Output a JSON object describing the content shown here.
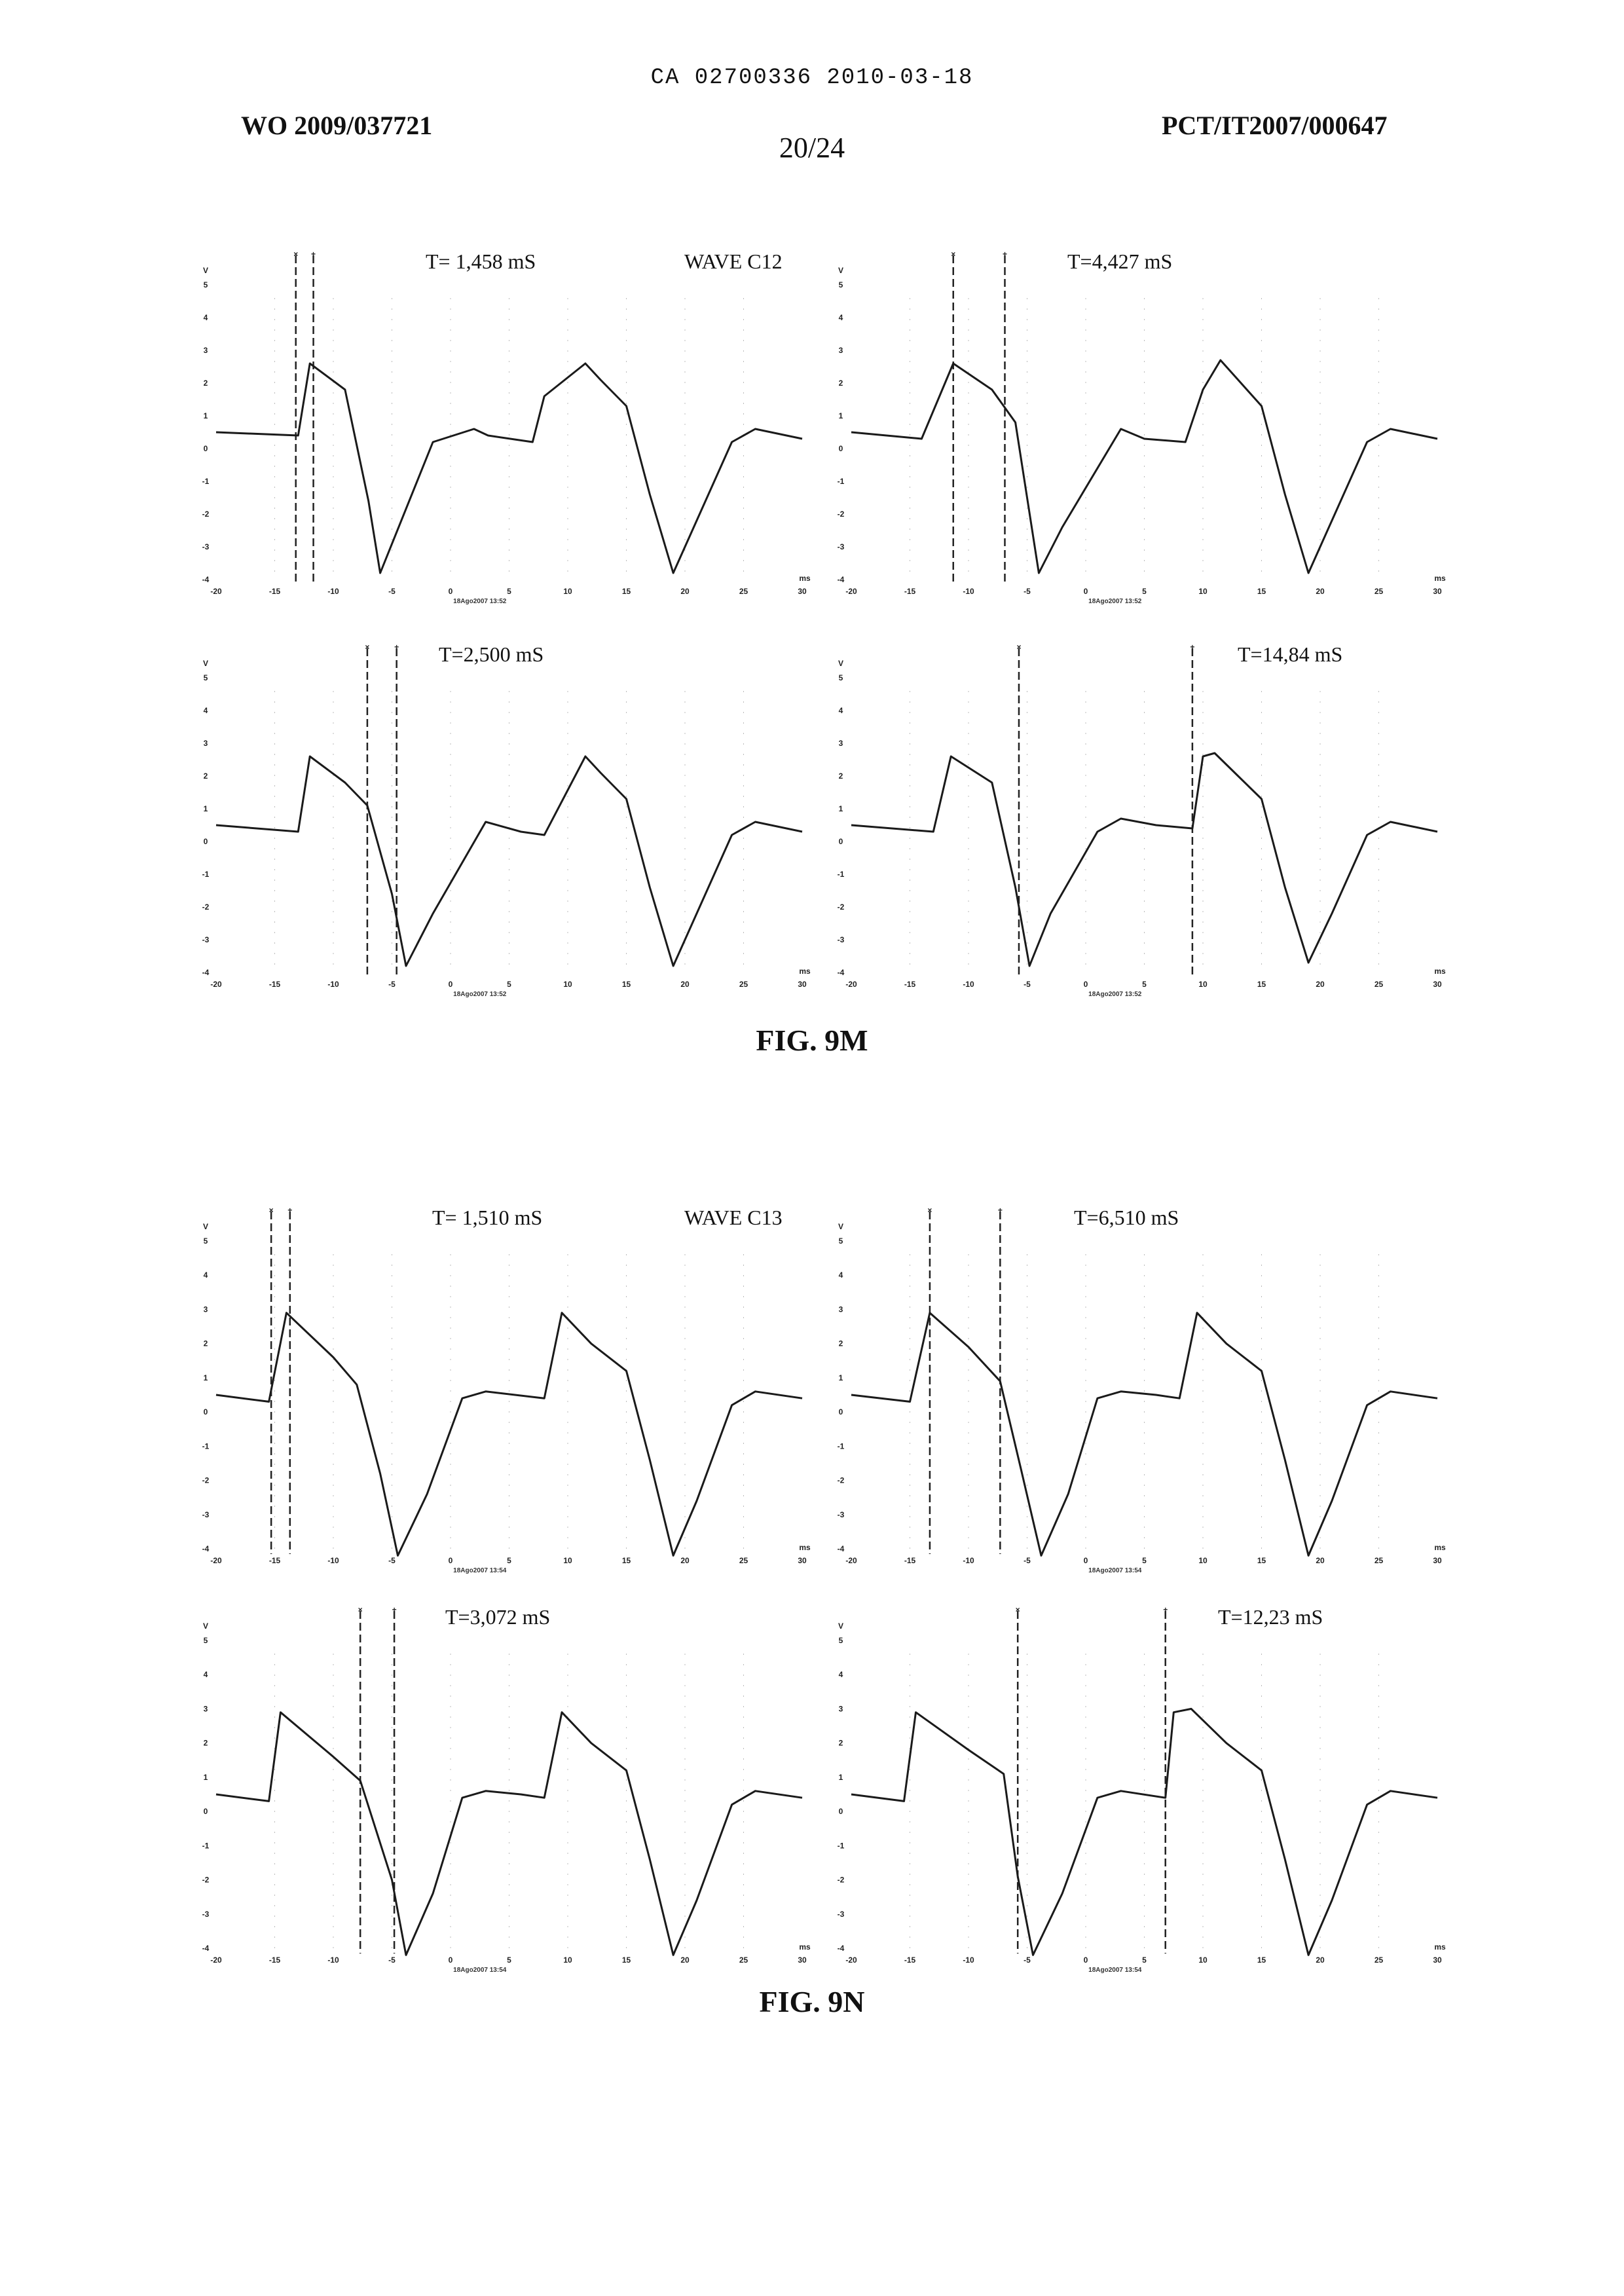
{
  "header": {
    "ca_line": "CA 02700336 2010-03-18",
    "wo_number": "WO 2009/037721",
    "pct_number": "PCT/IT2007/000647",
    "page_number": "20/24"
  },
  "figures": [
    {
      "label": "FIG. 9M",
      "wave_label": "WAVE C12",
      "stamp": "18Ago2007 13:52"
    },
    {
      "label": "FIG. 9N",
      "wave_label": "WAVE C13",
      "stamp": "18Ago2007 13:54"
    }
  ],
  "chart_data": [
    {
      "type": "line",
      "figure": "FIG. 9M",
      "title": "T= 1,458 mS",
      "xunit": "ms",
      "yunit": "V",
      "xlim": [
        -20,
        30
      ],
      "ylim": [
        -4,
        5
      ],
      "xticks": [
        -20,
        -15,
        -10,
        -5,
        0,
        5,
        10,
        15,
        20,
        25,
        30
      ],
      "yticks": [
        5,
        4,
        3,
        2,
        1,
        0,
        -1,
        -2,
        -3,
        -4
      ],
      "cursors": [
        -13.2,
        -11.7
      ],
      "series": [
        {
          "x": [
            -20,
            -13,
            -12,
            -9,
            -7,
            -6,
            -1.5,
            2,
            3.2,
            7,
            8,
            11.5,
            12.8,
            15,
            17,
            19,
            21,
            24,
            26,
            30
          ],
          "y": [
            0.5,
            0.4,
            2.6,
            1.8,
            -1.6,
            -3.8,
            0.2,
            0.6,
            0.4,
            0.2,
            1.6,
            2.6,
            2.1,
            1.3,
            -1.4,
            -3.8,
            -2.2,
            0.2,
            0.6,
            0.3
          ]
        }
      ]
    },
    {
      "type": "line",
      "figure": "FIG. 9M",
      "title": "T=4,427 mS",
      "xunit": "ms",
      "yunit": "V",
      "xlim": [
        -20,
        30
      ],
      "ylim": [
        -4,
        5
      ],
      "xticks": [
        -20,
        -15,
        -10,
        -5,
        0,
        5,
        10,
        15,
        20,
        25,
        30
      ],
      "yticks": [
        5,
        4,
        3,
        2,
        1,
        0,
        -1,
        -2,
        -3,
        -4
      ],
      "cursors": [
        -11.3,
        -6.9
      ],
      "series": [
        {
          "x": [
            -20,
            -14,
            -11.3,
            -8,
            -6,
            -4,
            -2,
            3,
            5,
            8.5,
            10,
            11.5,
            13,
            15,
            17,
            19,
            21,
            24,
            26,
            30
          ],
          "y": [
            0.5,
            0.3,
            2.6,
            1.8,
            0.8,
            -3.8,
            -2.4,
            0.6,
            0.3,
            0.2,
            1.8,
            2.7,
            2.1,
            1.3,
            -1.4,
            -3.8,
            -2.2,
            0.2,
            0.6,
            0.3
          ]
        }
      ]
    },
    {
      "type": "line",
      "figure": "FIG. 9M",
      "title": "T=2,500 mS",
      "xunit": "ms",
      "yunit": "V",
      "xlim": [
        -20,
        30
      ],
      "ylim": [
        -4,
        5
      ],
      "xticks": [
        -20,
        -15,
        -10,
        -5,
        0,
        5,
        10,
        15,
        20,
        25,
        30
      ],
      "yticks": [
        5,
        4,
        3,
        2,
        1,
        0,
        -1,
        -2,
        -3,
        -4
      ],
      "cursors": [
        -7.1,
        -4.6
      ],
      "series": [
        {
          "x": [
            -20,
            -13,
            -12,
            -9,
            -7.1,
            -5,
            -3.8,
            -1.5,
            3,
            6,
            8,
            11.5,
            12.8,
            15,
            17,
            19,
            21,
            24,
            26,
            30
          ],
          "y": [
            0.5,
            0.3,
            2.6,
            1.8,
            1.1,
            -1.6,
            -3.8,
            -2.2,
            0.6,
            0.3,
            0.2,
            2.6,
            2.1,
            1.3,
            -1.4,
            -3.8,
            -2.2,
            0.2,
            0.6,
            0.3
          ]
        }
      ]
    },
    {
      "type": "line",
      "figure": "FIG. 9M",
      "title": "T=14,84 mS",
      "xunit": "ms",
      "yunit": "V",
      "xlim": [
        -20,
        30
      ],
      "ylim": [
        -4,
        5
      ],
      "xticks": [
        -20,
        -15,
        -10,
        -5,
        0,
        5,
        10,
        15,
        20,
        25,
        30
      ],
      "yticks": [
        5,
        4,
        3,
        2,
        1,
        0,
        -1,
        -2,
        -3,
        -4
      ],
      "cursors": [
        -5.7,
        9.1
      ],
      "series": [
        {
          "x": [
            -20,
            -13,
            -11.5,
            -8,
            -6,
            -4.8,
            -3,
            1,
            3,
            6,
            9.1,
            10,
            11,
            13,
            15,
            17,
            19,
            21,
            24,
            26,
            30
          ],
          "y": [
            0.5,
            0.3,
            2.6,
            1.8,
            -1.4,
            -3.8,
            -2.2,
            0.3,
            0.7,
            0.5,
            0.4,
            2.6,
            2.7,
            2.0,
            1.3,
            -1.4,
            -3.7,
            -2.2,
            0.2,
            0.6,
            0.3
          ]
        }
      ]
    },
    {
      "type": "line",
      "figure": "FIG. 9N",
      "title": "T= 1,510 mS",
      "xunit": "ms",
      "yunit": "V",
      "xlim": [
        -20,
        30
      ],
      "ylim": [
        -4,
        5
      ],
      "xticks": [
        -20,
        -15,
        -10,
        -5,
        0,
        5,
        10,
        15,
        20,
        25,
        30
      ],
      "yticks": [
        5,
        4,
        3,
        2,
        1,
        0,
        -1,
        -2,
        -3,
        -4
      ],
      "cursors": [
        -15.3,
        -13.7
      ],
      "series": [
        {
          "x": [
            -20,
            -15.5,
            -14,
            -10,
            -8,
            -6,
            -4.5,
            -2,
            1,
            3,
            8,
            9.5,
            12,
            15,
            17,
            19,
            21,
            24,
            26,
            30
          ],
          "y": [
            0.5,
            0.3,
            2.9,
            1.6,
            0.8,
            -1.8,
            -4.2,
            -2.4,
            0.4,
            0.6,
            0.4,
            2.9,
            2.0,
            1.2,
            -1.4,
            -4.2,
            -2.6,
            0.2,
            0.6,
            0.4
          ]
        }
      ]
    },
    {
      "type": "line",
      "figure": "FIG. 9N",
      "title": "T=6,510 mS",
      "xunit": "ms",
      "yunit": "V",
      "xlim": [
        -20,
        30
      ],
      "ylim": [
        -4,
        5
      ],
      "xticks": [
        -20,
        -15,
        -10,
        -5,
        0,
        5,
        10,
        15,
        20,
        25,
        30
      ],
      "yticks": [
        5,
        4,
        3,
        2,
        1,
        0,
        -1,
        -2,
        -3,
        -4
      ],
      "cursors": [
        -13.3,
        -7.3
      ],
      "series": [
        {
          "x": [
            -20,
            -15,
            -13.3,
            -10,
            -7.3,
            -5.5,
            -3.8,
            -1.5,
            1,
            3,
            6,
            8,
            9.5,
            12,
            15,
            17,
            19,
            21,
            24,
            26,
            30
          ],
          "y": [
            0.5,
            0.3,
            2.9,
            1.9,
            0.9,
            -1.7,
            -4.2,
            -2.4,
            0.4,
            0.6,
            0.5,
            0.4,
            2.9,
            2.0,
            1.2,
            -1.4,
            -4.2,
            -2.6,
            0.2,
            0.6,
            0.4
          ]
        }
      ]
    },
    {
      "type": "line",
      "figure": "FIG. 9N",
      "title": "T=3,072 mS",
      "xunit": "ms",
      "yunit": "V",
      "xlim": [
        -20,
        30
      ],
      "ylim": [
        -4,
        5
      ],
      "xticks": [
        -20,
        -15,
        -10,
        -5,
        0,
        5,
        10,
        15,
        20,
        25,
        30
      ],
      "yticks": [
        5,
        4,
        3,
        2,
        1,
        0,
        -1,
        -2,
        -3,
        -4
      ],
      "cursors": [
        -7.7,
        -4.8
      ],
      "series": [
        {
          "x": [
            -20,
            -15.5,
            -14.5,
            -10,
            -7.7,
            -5,
            -3.8,
            -1.5,
            1,
            3,
            6,
            8,
            9.5,
            12,
            15,
            17,
            19,
            21,
            24,
            26,
            30
          ],
          "y": [
            0.5,
            0.3,
            2.9,
            1.6,
            0.9,
            -2.0,
            -4.2,
            -2.4,
            0.4,
            0.6,
            0.5,
            0.4,
            2.9,
            2.0,
            1.2,
            -1.4,
            -4.2,
            -2.6,
            0.2,
            0.6,
            0.4
          ]
        }
      ]
    },
    {
      "type": "line",
      "figure": "FIG. 9N",
      "title": "T=12,23 mS",
      "xunit": "ms",
      "yunit": "V",
      "xlim": [
        -20,
        30
      ],
      "ylim": [
        -4,
        5
      ],
      "xticks": [
        -20,
        -15,
        -10,
        -5,
        0,
        5,
        10,
        15,
        20,
        25,
        30
      ],
      "yticks": [
        5,
        4,
        3,
        2,
        1,
        0,
        -1,
        -2,
        -3,
        -4
      ],
      "cursors": [
        -5.8,
        6.8
      ],
      "series": [
        {
          "x": [
            -20,
            -15.5,
            -14.5,
            -10,
            -7,
            -5.8,
            -4.5,
            -2,
            1,
            3,
            6.8,
            7.5,
            9,
            12,
            15,
            17,
            19,
            21,
            24,
            26,
            30
          ],
          "y": [
            0.5,
            0.3,
            2.9,
            1.8,
            1.1,
            -1.9,
            -4.2,
            -2.4,
            0.4,
            0.6,
            0.4,
            2.9,
            3.0,
            2.0,
            1.2,
            -1.4,
            -4.2,
            -2.6,
            0.2,
            0.6,
            0.4
          ]
        }
      ]
    }
  ]
}
